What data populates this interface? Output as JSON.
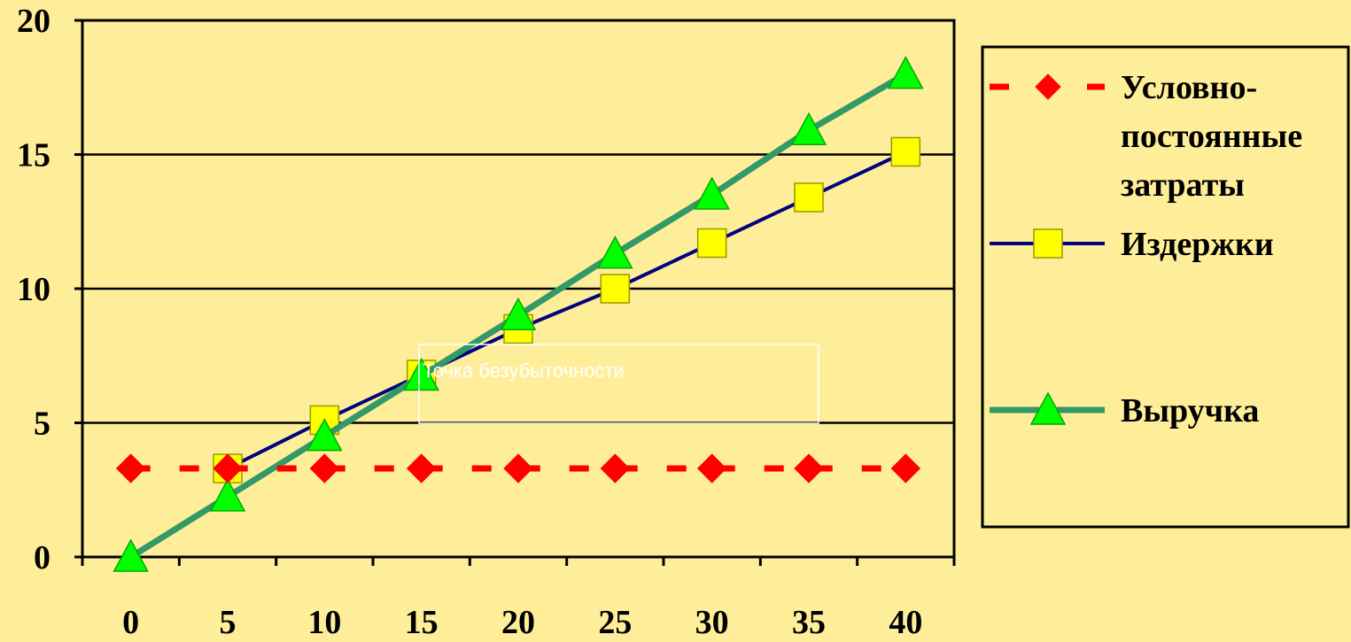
{
  "chart_data": {
    "type": "line",
    "x": [
      0,
      5,
      10,
      15,
      20,
      25,
      30,
      35,
      40
    ],
    "x_tick_labels": [
      "0",
      "5",
      "10",
      "15",
      "20",
      "25",
      "30",
      "35",
      "40"
    ],
    "y_tick_labels": [
      "0",
      "5",
      "10",
      "15",
      "20"
    ],
    "ylim": [
      0,
      20
    ],
    "grid": true,
    "legend_position": "right",
    "series": [
      {
        "name": "Условно-постоянные затраты",
        "name_lines": [
          "Условно-",
          "постоянные",
          "затраты"
        ],
        "values": [
          3.3,
          3.3,
          3.3,
          3.3,
          3.3,
          3.3,
          3.3,
          3.3,
          3.3
        ],
        "color": "#ff0000",
        "marker_color": "#ff0000",
        "line_style": "dashed",
        "marker": "diamond"
      },
      {
        "name": "Издержки",
        "name_lines": [
          "Издержки"
        ],
        "values": [
          null,
          3.3,
          5.1,
          6.8,
          8.5,
          10.0,
          11.7,
          13.4,
          15.1
        ],
        "color": "#000080",
        "marker_color": "#ffff00",
        "line_style": "solid",
        "marker": "square"
      },
      {
        "name": "Выручка",
        "name_lines": [
          "Выручка"
        ],
        "values": [
          0.0,
          2.25,
          4.5,
          6.75,
          9.0,
          11.3,
          13.5,
          15.9,
          18.0
        ],
        "color": "#339966",
        "marker_color": "#00ff00",
        "line_style": "solid",
        "marker": "triangle"
      }
    ],
    "annotation": "Точка безубыточности"
  },
  "colors": {
    "background": "#ffee99",
    "plot_area": "#ffee99",
    "gridline": "#000000",
    "axis": "#000000",
    "annotation_text": "#ffffff"
  }
}
